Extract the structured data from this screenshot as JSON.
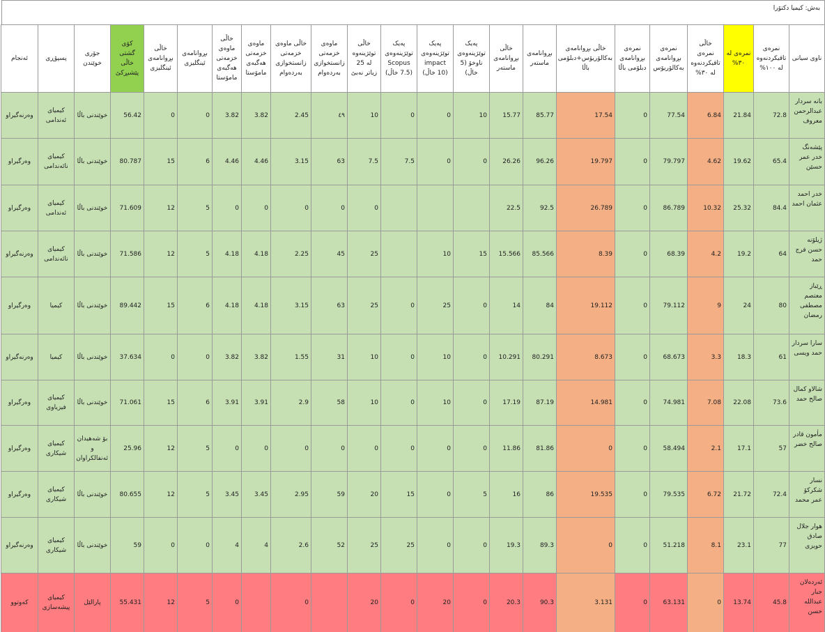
{
  "title": "بەش: کیمیا دکتۆرا",
  "table": {
    "headers": [
      "ناوی سیانی",
      "نمرەی تاقیکردنەوە لە ١٠٠%",
      "نمرەی لە ٣٠%",
      "خاڵی نمرەی تاقیکردنەوە لە ٣٠%",
      "نمرەی بڕوانامەی بەکالۆریۆس",
      "نمرەی بڕوانامەی دبلۆمی باڵا",
      "خاڵی بڕوانامەی بەکالۆریۆس+دبلۆمی باڵا",
      "بڕوانامەی ماستەر",
      "خاڵی بڕوانامەی ماستەر",
      "پەیک توێژینەوەی ناوخۆ (5 خاڵ)",
      "پەیک توێژینەوەی impact (10 خاڵ)",
      "پەیک توێژینەوەی Scopus (7.5 خاڵ)",
      "خاڵی توێژینەوە لە 25 زیاتر نەبێ",
      "ماوەی خزمەتی زانستخوازی بەردەوام",
      "خاڵی ماوەی خزمەتی زانستخوازی بەردەوام",
      "ماوەی خزمەتی هەگبەی مامۆستا",
      "خاڵی ماوەی خزمەتی هەگبەی مامۆستا",
      "بڕوانامەی ئینگلیزی",
      "خاڵی بڕوانامەی ئینگلیزی",
      "کۆی گشتی خاڵی پێشبڕکێ",
      "جۆری خوێندن",
      "پسپۆڕی",
      "ئەنجام"
    ],
    "rows": [
      [
        "بانە سردار عبدالرحمن معروف",
        72.8,
        21.84,
        6.84,
        77.54,
        0,
        17.54,
        85.77,
        15.77,
        10,
        0,
        0,
        10,
        "٤٩",
        2.45,
        3.82,
        3.82,
        0,
        0,
        56.42,
        "خوێندنی باڵا",
        "کیمیای ئەندامی",
        "وەرنەگیراو"
      ],
      [
        "پێشەنگ خدر عمر حسێن",
        65.4,
        19.62,
        4.62,
        79.797,
        0,
        19.797,
        96.26,
        26.26,
        0,
        0,
        7.5,
        7.5,
        63,
        3.15,
        4.46,
        4.46,
        6,
        15,
        80.787,
        "خوێندنی باڵا",
        "کیمیای نائەندامی",
        "وەرگیراو"
      ],
      [
        "خدر احمد عثمان احمد",
        84.4,
        25.32,
        10.32,
        86.789,
        0,
        26.789,
        92.5,
        22.5,
        null,
        null,
        null,
        0,
        0,
        0,
        0,
        0,
        5,
        12,
        71.609,
        "خوێندنی باڵا",
        "کیمیای ئەندامی",
        "وەرگیراو"
      ],
      [
        "ژیلۆنە حسن فرج حمد",
        64,
        19.2,
        4.2,
        68.39,
        0,
        8.39,
        85.566,
        15.566,
        15,
        10,
        null,
        25,
        45,
        2.25,
        4.18,
        4.18,
        5,
        12,
        71.586,
        "خوێندنی باڵا",
        "کیمیای نائەندامی",
        "وەرنەگیراو"
      ],
      [
        "ڕێباز معتصم مصطفی رمضان",
        80,
        24,
        9,
        79.112,
        0,
        19.112,
        84,
        14,
        0,
        25,
        0,
        25,
        63,
        3.15,
        4.18,
        4.18,
        6,
        15,
        89.442,
        "خوێندنی باڵا",
        "کیمیا",
        "وەرگیراو"
      ],
      [
        "سارا سردار حمد ویسی",
        61,
        18.3,
        3.3,
        68.673,
        0,
        8.673,
        80.291,
        10.291,
        0,
        10,
        0,
        10,
        31,
        1.55,
        3.82,
        3.82,
        0,
        0,
        37.634,
        "خوێندنی باڵا",
        "کیمیا",
        "وەرنەگیراو"
      ],
      [
        "شالاو کمال صالح حمد",
        73.6,
        22.08,
        7.08,
        74.981,
        0,
        14.981,
        87.19,
        17.19,
        0,
        10,
        0,
        10,
        58,
        2.9,
        3.91,
        3.91,
        6,
        15,
        71.061,
        "خوێندنی باڵا",
        "کیمیای فیزیاوی",
        "وەرگیراو"
      ],
      [
        "مأمون قادر صالح خضر",
        57,
        17.1,
        2.1,
        58.494,
        0,
        0,
        81.86,
        11.86,
        0,
        0,
        0,
        0,
        0,
        0,
        0,
        0,
        5,
        12,
        25.96,
        "بۆ شەهیدان و ئەنفالکراوان",
        "کیمیای شیکاری",
        "وەرگیراو"
      ],
      [
        "نسار شکرکۆ عمر محمد",
        72.4,
        21.72,
        6.72,
        79.535,
        0,
        19.535,
        86,
        16,
        5,
        0,
        15,
        20,
        59,
        2.95,
        3.45,
        3.45,
        5,
        12,
        80.655,
        "خوێندنی باڵا",
        "کیمیای شیکاری",
        "وەرگیراو"
      ],
      [
        "هوار جلال صادق حویزی",
        77,
        23.1,
        8.1,
        51.218,
        0,
        0,
        89.3,
        19.3,
        0,
        0,
        25,
        25,
        52,
        2.6,
        4,
        4,
        0,
        0,
        59,
        "خوێندنی باڵا",
        "کیمیای شیکاری",
        "وەرنەگیراو"
      ],
      [
        "ئەردەلان جبار عبداللە حسن",
        45.8,
        13.74,
        0,
        63.131,
        0,
        3.131,
        90.3,
        20.3,
        0,
        20,
        0,
        20,
        null,
        0,
        null,
        0,
        5,
        12,
        55.431,
        "پارالێل",
        "کیمیای پیشەسازی",
        "کەوتوو"
      ]
    ]
  }
}
